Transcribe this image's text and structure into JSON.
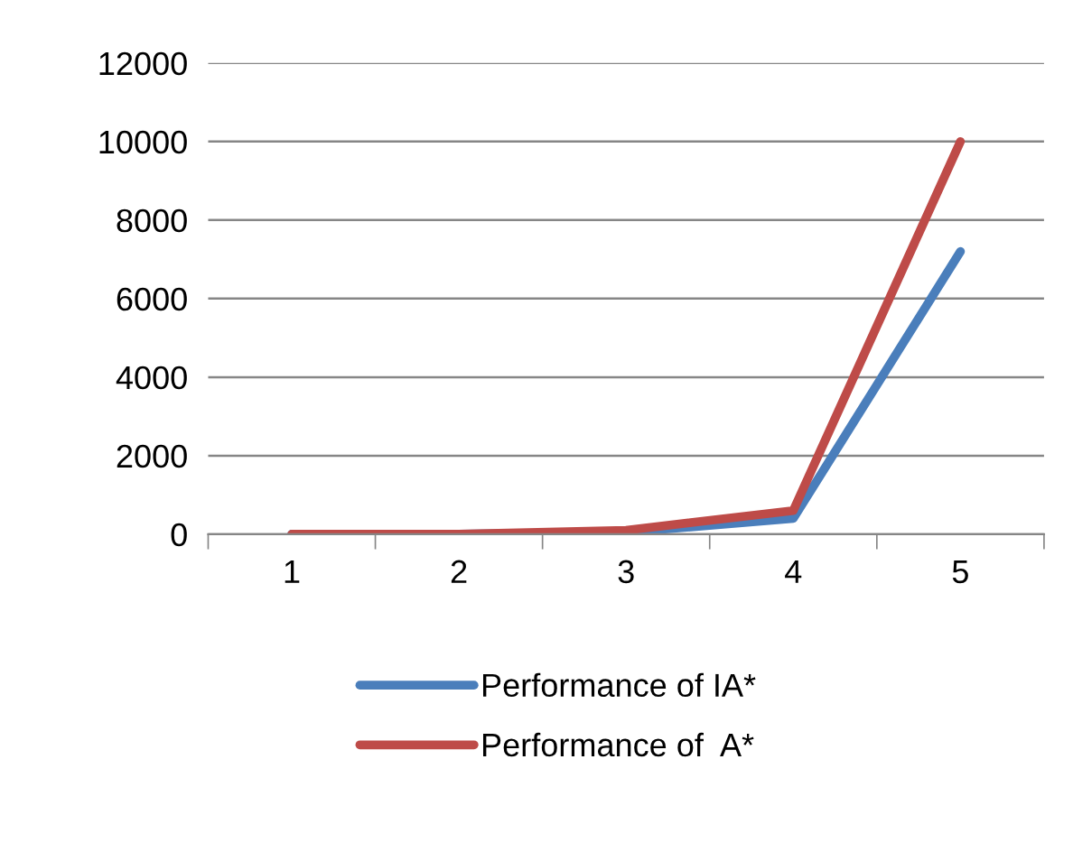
{
  "chart_data": {
    "type": "line",
    "categories": [
      "1",
      "2",
      "3",
      "4",
      "5"
    ],
    "series": [
      {
        "name": "Performance of IA*",
        "color": "#4a7ebb",
        "values": [
          0,
          0,
          50,
          400,
          7200
        ]
      },
      {
        "name": "Performance of  A*",
        "color": "#be4b48",
        "values": [
          0,
          0,
          100,
          600,
          10000
        ]
      }
    ],
    "ylim": [
      0,
      12000
    ],
    "yticks": [
      0,
      2000,
      4000,
      6000,
      8000,
      10000,
      12000
    ],
    "grid": "y",
    "legend": "bottom",
    "marker": "none",
    "line_style": "solid"
  }
}
